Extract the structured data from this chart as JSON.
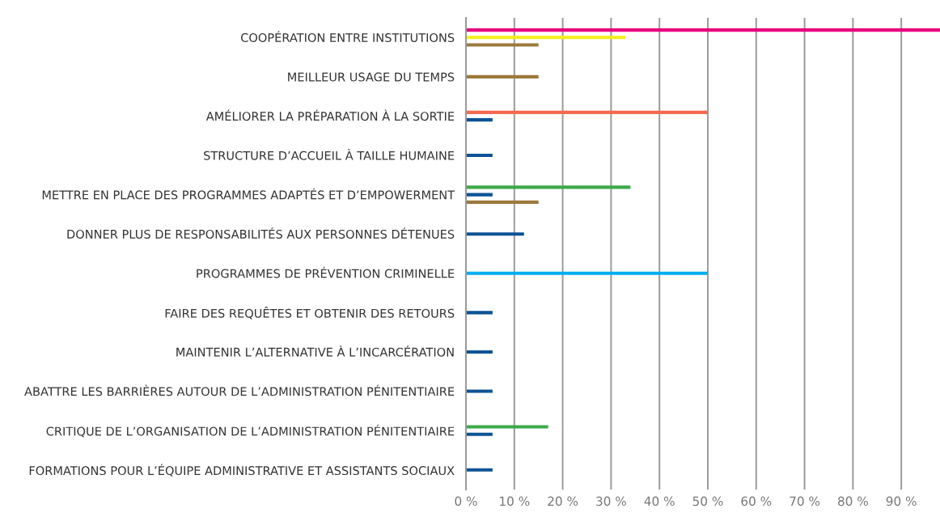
{
  "chart_data": {
    "type": "bar",
    "orientation": "horizontal",
    "categories": [
      "COOPÉRATION ENTRE INSTITUTIONS",
      "MEILLEUR USAGE DU TEMPS",
      "AMÉLIORER LA PRÉPARATION À LA SORTIE",
      "STRUCTURE D’ACCUEIL À TAILLE HUMAINE",
      "METTRE EN PLACE DES PROGRAMMES ADAPTÉS ET D’EMPOWERMENT",
      "DONNER PLUS DE RESPONSABILITÉS AUX PERSONNES DÉTENUES",
      "PROGRAMMES DE PRÉVENTION CRIMINELLE",
      "FAIRE DES REQUÊTES ET OBTENIR DES RETOURS",
      "MAINTENIR L’ALTERNATIVE À L’INCARCÉRATION",
      "ABATTRE LES BARRIÈRES AUTOUR DE L’ADMINISTRATION PÉNITENTIAIRE",
      "CRITIQUE DE L’ORGANISATION DE L’ADMINISTRATION PÉNITENTIAIRE",
      "FORMATIONS POUR L’ÉQUIPE ADMINISTRATIVE ET ASSISTANTS SOCIAUX"
    ],
    "series": [
      {
        "color": "#e6007e",
        "values": [
          98,
          null,
          null,
          null,
          null,
          null,
          null,
          null,
          null,
          null,
          null,
          null
        ]
      },
      {
        "color": "#f5ee1a",
        "values": [
          33,
          null,
          null,
          null,
          null,
          null,
          null,
          null,
          null,
          null,
          null,
          null
        ]
      },
      {
        "color": "#f26b4f",
        "values": [
          null,
          null,
          50,
          null,
          null,
          null,
          null,
          null,
          null,
          null,
          null,
          null
        ]
      },
      {
        "color": "#3daa49",
        "values": [
          null,
          null,
          null,
          null,
          34,
          null,
          null,
          null,
          null,
          null,
          17,
          null
        ]
      },
      {
        "color": "#00aeef",
        "values": [
          null,
          null,
          null,
          null,
          null,
          null,
          50,
          null,
          null,
          null,
          null,
          null
        ]
      },
      {
        "color": "#0b5394",
        "values": [
          null,
          null,
          5.5,
          5.5,
          5.5,
          12,
          null,
          5.5,
          5.5,
          5.5,
          5.5,
          5.5
        ]
      },
      {
        "color": "#9c7a3c",
        "values": [
          15,
          15,
          null,
          null,
          15,
          null,
          null,
          null,
          null,
          null,
          null,
          null
        ]
      }
    ],
    "xlim": [
      0,
      98
    ],
    "xticks": [
      {
        "value": 0,
        "label": "0 %"
      },
      {
        "value": 10,
        "label": "10 %"
      },
      {
        "value": 20,
        "label": "20 %"
      },
      {
        "value": 30,
        "label": "30 %"
      },
      {
        "value": 40,
        "label": "40 %"
      },
      {
        "value": 50,
        "label": "50 %"
      },
      {
        "value": 60,
        "label": "60 %"
      },
      {
        "value": 70,
        "label": "70 %"
      },
      {
        "value": 80,
        "label": "80 %"
      },
      {
        "value": 90,
        "label": "90 %"
      }
    ],
    "grid": "x",
    "legend": false
  }
}
